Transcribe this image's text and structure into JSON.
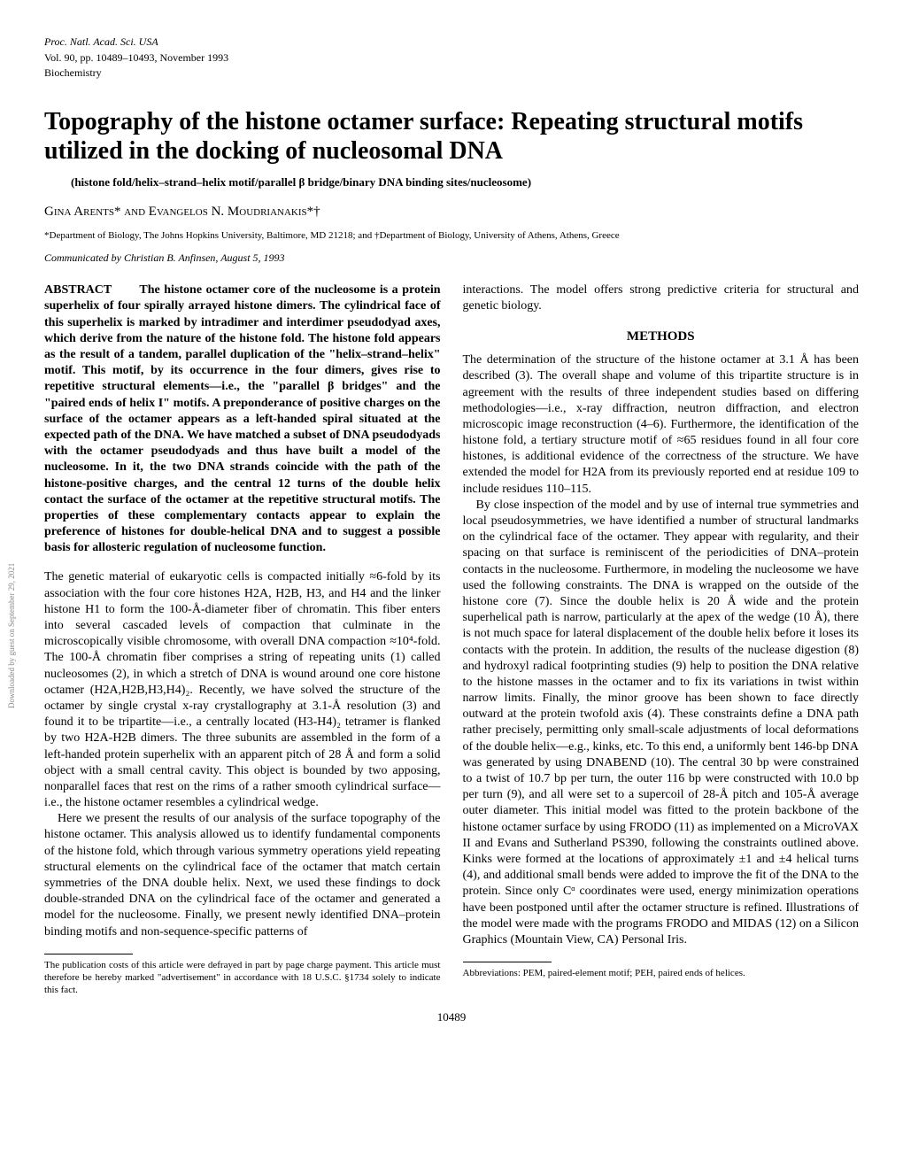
{
  "header": {
    "journal": "Proc. Natl. Acad. Sci. USA",
    "volume_info": "Vol. 90, pp. 10489–10493, November 1993",
    "category": "Biochemistry"
  },
  "title": "Topography of the histone octamer surface: Repeating structural motifs utilized in the docking of nucleosomal DNA",
  "subtitle": "(histone fold/helix–strand–helix motif/parallel β bridge/binary DNA binding sites/nucleosome)",
  "authors": "Gina Arents* and Evangelos N. Moudrianakis*†",
  "affiliations": "*Department of Biology, The Johns Hopkins University, Baltimore, MD 21218; and †Department of Biology, University of Athens, Athens, Greece",
  "communicated": "Communicated by Christian B. Anfinsen, August 5, 1993",
  "abstract": {
    "label": "ABSTRACT",
    "text": "The histone octamer core of the nucleosome is a protein superhelix of four spirally arrayed histone dimers. The cylindrical face of this superhelix is marked by intradimer and interdimer pseudodyad axes, which derive from the nature of the histone fold. The histone fold appears as the result of a tandem, parallel duplication of the \"helix–strand–helix\" motif. This motif, by its occurrence in the four dimers, gives rise to repetitive structural elements—i.e., the \"parallel β bridges\" and the \"paired ends of helix I\" motifs. A preponderance of positive charges on the surface of the octamer appears as a left-handed spiral situated at the expected path of the DNA. We have matched a subset of DNA pseudodyads with the octamer pseudodyads and thus have built a model of the nucleosome. In it, the two DNA strands coincide with the path of the histone-positive charges, and the central 12 turns of the double helix contact the surface of the octamer at the repetitive structural motifs. The properties of these complementary contacts appear to explain the preference of histones for double-helical DNA and to suggest a possible basis for allosteric regulation of nucleosome function."
  },
  "intro_p1": "The genetic material of eukaryotic cells is compacted initially ≈6-fold by its association with the four core histones H2A, H2B, H3, and H4 and the linker histone H1 to form the 100-Å-diameter fiber of chromatin. This fiber enters into several cascaded levels of compaction that culminate in the microscopically visible chromosome, with overall DNA compaction ≈10⁴-fold. The 100-Å chromatin fiber comprises a string of repeating units (1) called nucleosomes (2), in which a stretch of DNA is wound around one core histone octamer (H2A,H2B,H3,H4)₂. Recently, we have solved the structure of the octamer by single crystal x-ray crystallography at 3.1-Å resolution (3) and found it to be tripartite—i.e., a centrally located (H3-H4)₂ tetramer is flanked by two H2A-H2B dimers. The three subunits are assembled in the form of a left-handed protein superhelix with an apparent pitch of 28 Å and form a solid object with a small central cavity. This object is bounded by two apposing, nonparallel faces that rest on the rims of a rather smooth cylindrical surface—i.e., the histone octamer resembles a cylindrical wedge.",
  "intro_p2": "Here we present the results of our analysis of the surface topography of the histone octamer. This analysis allowed us to identify fundamental components of the histone fold, which through various symmetry operations yield repeating structural elements on the cylindrical face of the octamer that match certain symmetries of the DNA double helix. Next, we used these findings to dock double-stranded DNA on the cylindrical face of the octamer and generated a model for the nucleosome. Finally, we present newly identified DNA–protein binding motifs and non-sequence-specific patterns of",
  "right_intro": "interactions. The model offers strong predictive criteria for structural and genetic biology.",
  "methods_header": "METHODS",
  "methods_p1": "The determination of the structure of the histone octamer at 3.1 Å has been described (3). The overall shape and volume of this tripartite structure is in agreement with the results of three independent studies based on differing methodologies—i.e., x-ray diffraction, neutron diffraction, and electron microscopic image reconstruction (4–6). Furthermore, the identification of the histone fold, a tertiary structure motif of ≈65 residues found in all four core histones, is additional evidence of the correctness of the structure. We have extended the model for H2A from its previously reported end at residue 109 to include residues 110–115.",
  "methods_p2": "By close inspection of the model and by use of internal true symmetries and local pseudosymmetries, we have identified a number of structural landmarks on the cylindrical face of the octamer. They appear with regularity, and their spacing on that surface is reminiscent of the periodicities of DNA–protein contacts in the nucleosome. Furthermore, in modeling the nucleosome we have used the following constraints. The DNA is wrapped on the outside of the histone core (7). Since the double helix is 20 Å wide and the protein superhelical path is narrow, particularly at the apex of the wedge (10 Å), there is not much space for lateral displacement of the double helix before it loses its contacts with the protein. In addition, the results of the nuclease digestion (8) and hydroxyl radical footprinting studies (9) help to position the DNA relative to the histone masses in the octamer and to fix its variations in twist within narrow limits. Finally, the minor groove has been shown to face directly outward at the protein twofold axis (4). These constraints define a DNA path rather precisely, permitting only small-scale adjustments of local deformations of the double helix—e.g., kinks, etc. To this end, a uniformly bent 146-bp DNA was generated by using DNABEND (10). The central 30 bp were constrained to a twist of 10.7 bp per turn, the outer 116 bp were constructed with 10.0 bp per turn (9), and all were set to a supercoil of 28-Å pitch and 105-Å average outer diameter. This initial model was fitted to the protein backbone of the histone octamer surface by using FRODO (11) as implemented on a MicroVAX II and Evans and Sutherland PS390, following the constraints outlined above. Kinks were formed at the locations of approximately ±1 and ±4 helical turns (4), and additional small bends were added to improve the fit of the DNA to the protein. Since only Cᵅ coordinates were used, energy minimization operations have been postponed until after the octamer structure is refined. Illustrations of the model were made with the programs FRODO and MIDAS (12) on a Silicon Graphics (Mountain View, CA) Personal Iris.",
  "footnote_left": "The publication costs of this article were defrayed in part by page charge payment. This article must therefore be hereby marked \"advertisement\" in accordance with 18 U.S.C. §1734 solely to indicate this fact.",
  "footnote_right": "Abbreviations: PEM, paired-element motif; PEH, paired ends of helices.",
  "page_number": "10489",
  "sidebar": "Downloaded by guest on September 29, 2021"
}
